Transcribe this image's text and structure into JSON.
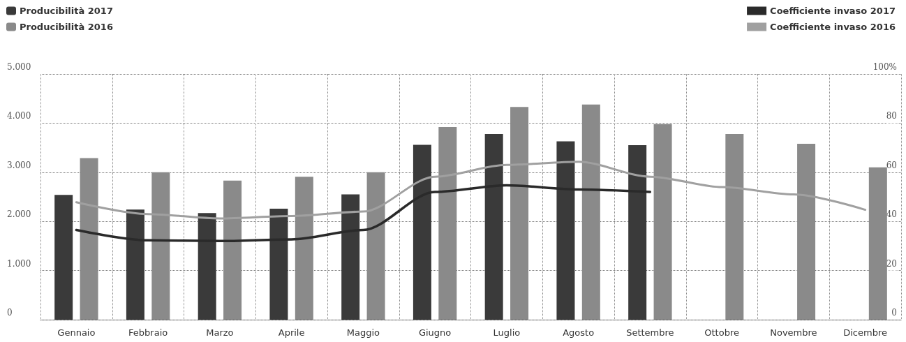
{
  "chart_data": {
    "type": "bar",
    "categories": [
      "Gennaio",
      "Febbraio",
      "Marzo",
      "Aprile",
      "Maggio",
      "Giugno",
      "Luglio",
      "Agosto",
      "Settembre",
      "Ottobre",
      "Novembre",
      "Dicembre"
    ],
    "series": [
      {
        "name": "Producibilità 2017",
        "color": "#3a3a3a",
        "values": [
          2540,
          2240,
          2170,
          2260,
          2550,
          3560,
          3780,
          3630,
          3550,
          null,
          null,
          null
        ]
      },
      {
        "name": "Producibilità 2016",
        "color": "#8a8a8a",
        "values": [
          3290,
          3000,
          2830,
          2910,
          3000,
          3920,
          4330,
          4380,
          3980,
          3780,
          3580,
          3100
        ]
      },
      {
        "name": "Coefficiente invaso 2017",
        "type": "line",
        "axis": "y2",
        "color": "#2a2a2a",
        "values": [
          36.5,
          32.3,
          32,
          32.7,
          36.5,
          52,
          54.7,
          53,
          52,
          null,
          null,
          null
        ]
      },
      {
        "name": "Coefficiente invaso 2016",
        "type": "line",
        "axis": "y2",
        "color": "#a0a0a0",
        "values": [
          47.8,
          43,
          41.2,
          42.2,
          44,
          58.2,
          63,
          64.3,
          58.2,
          54,
          51,
          44.7
        ]
      }
    ],
    "ylim": [
      0,
      5000
    ],
    "yticks": [
      {
        "value": 0,
        "label": "0"
      },
      {
        "value": 1000,
        "label": "1.000"
      },
      {
        "value": 2000,
        "label": "2.000"
      },
      {
        "value": 3000,
        "label": "3.000"
      },
      {
        "value": 4000,
        "label": "4.000"
      },
      {
        "value": 5000,
        "label": "5.000"
      }
    ],
    "y2lim": [
      0,
      100
    ],
    "y2ticks": [
      0,
      20,
      40,
      60,
      80,
      {
        "value": 100,
        "label": "100%"
      }
    ],
    "grid": true,
    "legend": "top",
    "marker": "none",
    "line_style": "solid"
  }
}
